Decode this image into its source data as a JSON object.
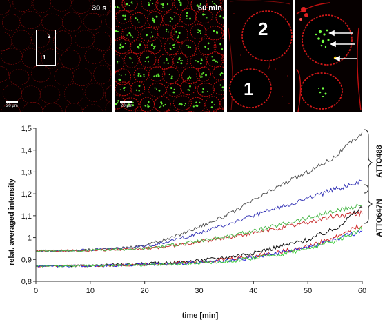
{
  "panels": {
    "p1": {
      "time_label": "30 s",
      "scale_label": "20 µm",
      "box_label_top": "2",
      "box_label_bottom": "1"
    },
    "p2": {
      "time_label": "60 min",
      "scale_label": "20 µm"
    },
    "p3": {
      "cell_label_top": "2",
      "cell_label_bottom": "1"
    },
    "p4": {}
  },
  "colors": {
    "membrane": "#d01010",
    "vesicle": "#5fe830",
    "background": "#060000"
  },
  "chart_data": {
    "type": "line",
    "xlabel": "time [min]",
    "ylabel": "relat. averaged intensity",
    "xlim": [
      0,
      60
    ],
    "ylim": [
      0.8,
      1.5
    ],
    "x_ticks": [
      "0",
      "10",
      "20",
      "30",
      "40",
      "50",
      "60"
    ],
    "y_ticks": [
      "0,8",
      "0,9",
      "1",
      "1,1",
      "1,2",
      "1,3",
      "1,4",
      "1,5"
    ],
    "brace_labels": [
      "ATTO488",
      "ATTO647N"
    ],
    "x": [
      0,
      5,
      10,
      15,
      20,
      25,
      30,
      35,
      40,
      45,
      50,
      55,
      60
    ],
    "series": [
      {
        "color": "#555555",
        "group": "ATTO488",
        "values": [
          0.94,
          0.94,
          0.945,
          0.95,
          0.965,
          1.0,
          1.05,
          1.1,
          1.17,
          1.24,
          1.3,
          1.37,
          1.48
        ]
      },
      {
        "color": "#3a3ab8",
        "group": "ATTO488",
        "values": [
          0.94,
          0.94,
          0.945,
          0.95,
          0.96,
          0.985,
          1.02,
          1.06,
          1.1,
          1.14,
          1.18,
          1.22,
          1.26
        ]
      },
      {
        "color": "#c83030",
        "group": "ATTO488",
        "values": [
          0.94,
          0.94,
          0.942,
          0.945,
          0.95,
          0.96,
          0.98,
          1.0,
          1.02,
          1.045,
          1.07,
          1.1,
          1.11
        ]
      },
      {
        "color": "#4ab84a",
        "group": "ATTO488",
        "values": [
          0.94,
          0.94,
          0.942,
          0.945,
          0.952,
          0.965,
          0.985,
          1.005,
          1.03,
          1.06,
          1.09,
          1.12,
          1.15
        ]
      },
      {
        "color": "#111111",
        "group": "ATTO647N",
        "values": [
          0.87,
          0.87,
          0.872,
          0.875,
          0.88,
          0.885,
          0.895,
          0.91,
          0.93,
          0.96,
          0.99,
          1.04,
          1.14
        ]
      },
      {
        "color": "#d02020",
        "group": "ATTO647N",
        "values": [
          0.87,
          0.87,
          0.871,
          0.873,
          0.877,
          0.882,
          0.89,
          0.9,
          0.915,
          0.935,
          0.96,
          1.0,
          1.06
        ]
      },
      {
        "color": "#2a2ae0",
        "group": "ATTO647N",
        "values": [
          0.87,
          0.87,
          0.871,
          0.873,
          0.876,
          0.88,
          0.887,
          0.895,
          0.91,
          0.93,
          0.955,
          0.99,
          1.03
        ]
      },
      {
        "color": "#40d040",
        "group": "ATTO647N",
        "values": [
          0.87,
          0.87,
          0.871,
          0.872,
          0.875,
          0.878,
          0.884,
          0.892,
          0.905,
          0.925,
          0.95,
          0.985,
          1.04
        ]
      }
    ]
  }
}
